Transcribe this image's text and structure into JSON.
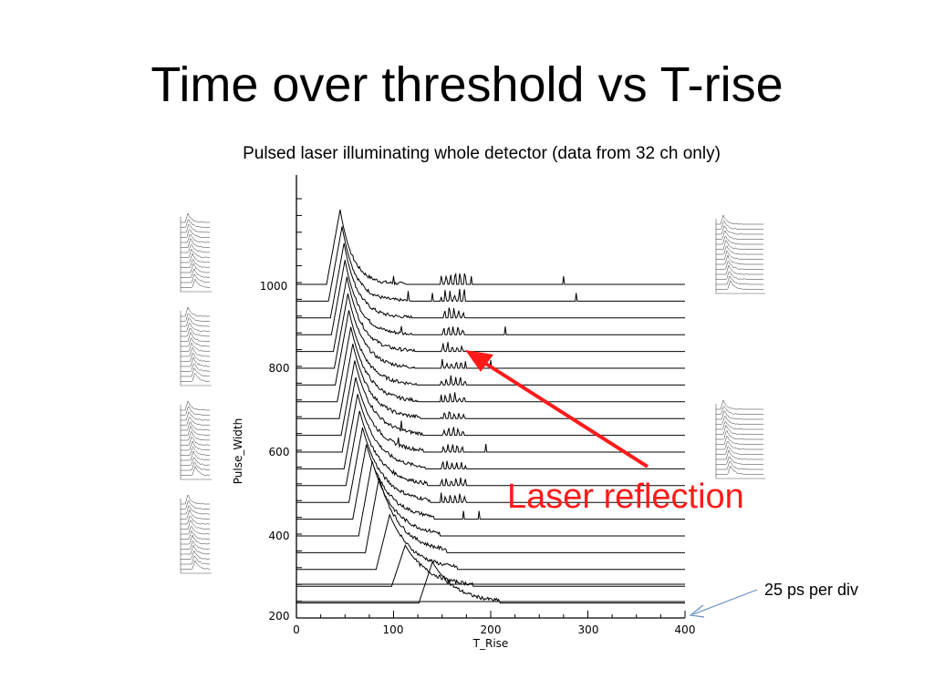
{
  "title": "Time over threshold vs T-rise",
  "subtitle": "Pulsed laser illuminating whole detector (data from 32 ch only)",
  "annotation": "Laser reflection",
  "note": "25 ps per div",
  "colors": {
    "annotation": "#ff1a1a",
    "note_arrow": "#6a8fc4",
    "trace": "#000000"
  },
  "chart_data": {
    "type": "line",
    "xlabel": "T_Rise",
    "ylabel": "Pulse_Width",
    "xlim": [
      0,
      400
    ],
    "ylim": [
      200,
      1000
    ],
    "x_ticks": [
      "0",
      "100",
      "200",
      "300",
      "400"
    ],
    "y_ticks": [
      "200",
      "400",
      "600",
      "800",
      "1000"
    ],
    "grid": false,
    "traces": 20,
    "trace_peak_x": [
      45,
      47,
      49,
      50,
      52,
      53,
      54,
      56,
      58,
      60,
      61,
      63,
      65,
      68,
      72,
      78,
      85,
      96,
      112,
      140
    ]
  }
}
